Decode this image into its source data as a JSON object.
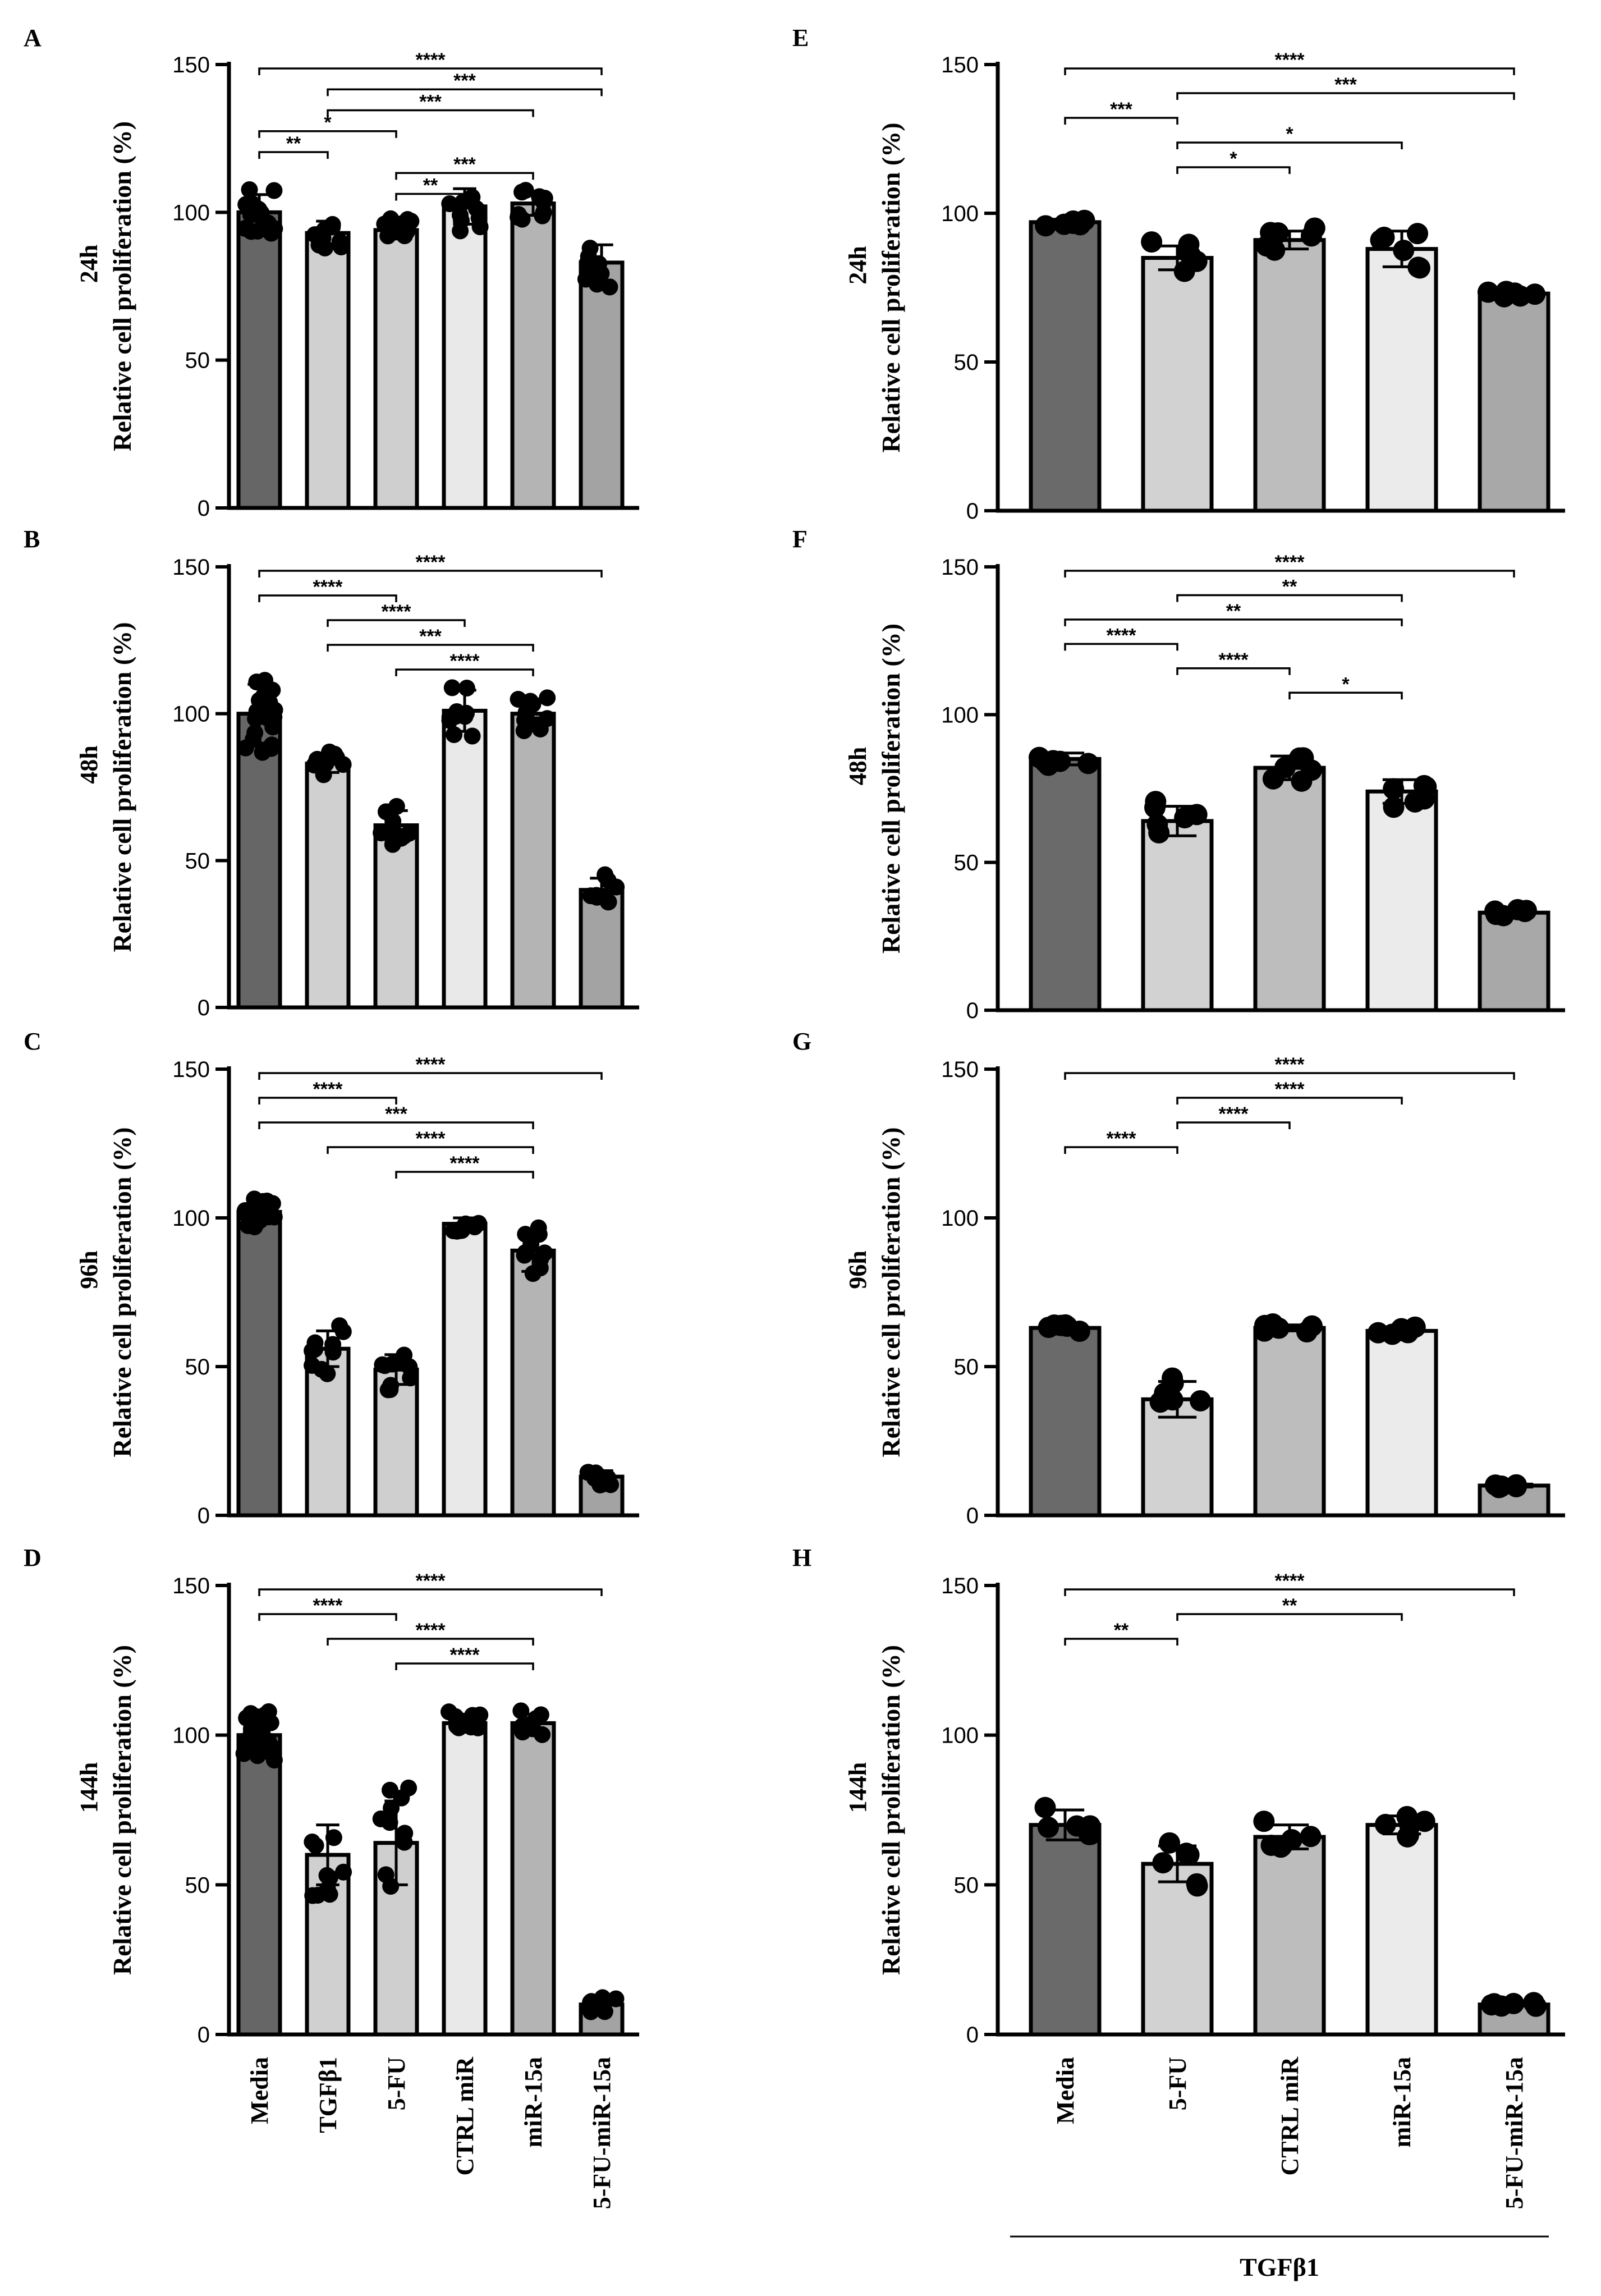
{
  "figure": {
    "y_axis_label": "Relative cell proliferation (%)",
    "group_label": "TGFβ1"
  },
  "chart_data": [
    {
      "panel": "A",
      "time": "24h",
      "type": "bar",
      "categories": [
        "Media",
        "TGFβ1",
        "5-FU",
        "CTRL miR",
        "miR-15a",
        "5-FU-miR-15a"
      ],
      "values": [
        100,
        93,
        94,
        102,
        103,
        83
      ],
      "errors": [
        6,
        4,
        3,
        6,
        4,
        6
      ],
      "ylim": [
        0,
        150
      ],
      "yticks": [
        0,
        50,
        100,
        150
      ],
      "comparisons": [
        {
          "from": 0,
          "to": 5,
          "label": "****"
        },
        {
          "from": 1,
          "to": 5,
          "label": "***"
        },
        {
          "from": 1,
          "to": 4,
          "label": "***"
        },
        {
          "from": 0,
          "to": 2,
          "label": "*"
        },
        {
          "from": 0,
          "to": 1,
          "label": "**"
        },
        {
          "from": 2,
          "to": 4,
          "label": "***"
        },
        {
          "from": 2,
          "to": 3,
          "label": "**"
        }
      ]
    },
    {
      "panel": "B",
      "time": "48h",
      "type": "bar",
      "categories": [
        "Media",
        "TGFβ1",
        "5-FU",
        "CTRL miR",
        "miR-15a",
        "5-FU-miR-15a"
      ],
      "values": [
        100,
        83,
        62,
        101,
        100,
        40
      ],
      "errors": [
        10,
        3,
        5,
        7,
        5,
        4
      ],
      "ylim": [
        0,
        150
      ],
      "yticks": [
        0,
        50,
        100,
        150
      ],
      "comparisons": [
        {
          "from": 0,
          "to": 5,
          "label": "****"
        },
        {
          "from": 0,
          "to": 2,
          "label": "****"
        },
        {
          "from": 1,
          "to": 3,
          "label": "****"
        },
        {
          "from": 1,
          "to": 4,
          "label": "***"
        },
        {
          "from": 2,
          "to": 4,
          "label": "****"
        }
      ]
    },
    {
      "panel": "C",
      "time": "96h",
      "type": "bar",
      "categories": [
        "Media",
        "TGFβ1",
        "5-FU",
        "CTRL miR",
        "miR-15a",
        "5-FU-miR-15a"
      ],
      "values": [
        102,
        56,
        49,
        98,
        89,
        13
      ],
      "errors": [
        4,
        6,
        5,
        2,
        7,
        2
      ],
      "ylim": [
        0,
        150
      ],
      "yticks": [
        0,
        50,
        100,
        150
      ],
      "comparisons": [
        {
          "from": 0,
          "to": 5,
          "label": "****"
        },
        {
          "from": 0,
          "to": 2,
          "label": "****"
        },
        {
          "from": 0,
          "to": 4,
          "label": "***"
        },
        {
          "from": 1,
          "to": 4,
          "label": "****"
        },
        {
          "from": 2,
          "to": 4,
          "label": "****"
        }
      ]
    },
    {
      "panel": "D",
      "time": "144h",
      "type": "bar",
      "categories": [
        "Media",
        "TGFβ1",
        "5-FU",
        "CTRL miR",
        "miR-15a",
        "5-FU-miR-15a"
      ],
      "values": [
        100,
        60,
        64,
        104,
        104,
        10
      ],
      "errors": [
        6,
        10,
        14,
        3,
        3,
        2
      ],
      "ylim": [
        0,
        150
      ],
      "yticks": [
        0,
        50,
        100,
        150
      ],
      "comparisons": [
        {
          "from": 0,
          "to": 5,
          "label": "****"
        },
        {
          "from": 0,
          "to": 2,
          "label": "****"
        },
        {
          "from": 1,
          "to": 4,
          "label": "****"
        },
        {
          "from": 2,
          "to": 4,
          "label": "****"
        }
      ]
    },
    {
      "panel": "E",
      "time": "24h",
      "type": "bar",
      "categories": [
        "Media",
        "5-FU",
        "CTRL miR",
        "miR-15a",
        "5-FU-miR-15a"
      ],
      "values": [
        97,
        85,
        91,
        88,
        73
      ],
      "errors": [
        1,
        4,
        3,
        6,
        1
      ],
      "ylim": [
        0,
        150
      ],
      "yticks": [
        0,
        50,
        100,
        150
      ],
      "comparisons": [
        {
          "from": 0,
          "to": 4,
          "label": "****"
        },
        {
          "from": 1,
          "to": 4,
          "label": "***"
        },
        {
          "from": 0,
          "to": 1,
          "label": "***"
        },
        {
          "from": 1,
          "to": 3,
          "label": "*"
        },
        {
          "from": 1,
          "to": 2,
          "label": "*"
        }
      ]
    },
    {
      "panel": "F",
      "time": "48h",
      "type": "bar",
      "categories": [
        "Media",
        "5-FU",
        "CTRL miR",
        "miR-15a",
        "5-FU-miR-15a"
      ],
      "values": [
        85,
        64,
        82,
        74,
        33
      ],
      "errors": [
        2,
        5,
        4,
        4,
        1
      ],
      "ylim": [
        0,
        150
      ],
      "yticks": [
        0,
        50,
        100,
        150
      ],
      "comparisons": [
        {
          "from": 0,
          "to": 4,
          "label": "****"
        },
        {
          "from": 1,
          "to": 3,
          "label": "**"
        },
        {
          "from": 0,
          "to": 3,
          "label": "**"
        },
        {
          "from": 0,
          "to": 1,
          "label": "****"
        },
        {
          "from": 1,
          "to": 2,
          "label": "****"
        },
        {
          "from": 2,
          "to": 3,
          "label": "*"
        }
      ]
    },
    {
      "panel": "G",
      "time": "96h",
      "type": "bar",
      "categories": [
        "Media",
        "5-FU",
        "CTRL miR",
        "miR-15a",
        "5-FU-miR-15a"
      ],
      "values": [
        63,
        39,
        63,
        62,
        10
      ],
      "errors": [
        1,
        6,
        1,
        1,
        0.5
      ],
      "ylim": [
        0,
        150
      ],
      "yticks": [
        0,
        50,
        100,
        150
      ],
      "comparisons": [
        {
          "from": 0,
          "to": 4,
          "label": "****"
        },
        {
          "from": 1,
          "to": 3,
          "label": "****"
        },
        {
          "from": 1,
          "to": 2,
          "label": "****"
        },
        {
          "from": 0,
          "to": 1,
          "label": "****"
        }
      ]
    },
    {
      "panel": "H",
      "time": "144h",
      "type": "bar",
      "categories": [
        "Media",
        "5-FU",
        "CTRL miR",
        "miR-15a",
        "5-FU-miR-15a"
      ],
      "values": [
        70,
        57,
        66,
        70,
        10
      ],
      "errors": [
        5,
        6,
        4,
        3,
        0.5
      ],
      "ylim": [
        0,
        150
      ],
      "yticks": [
        0,
        50,
        100,
        150
      ],
      "comparisons": [
        {
          "from": 0,
          "to": 4,
          "label": "****"
        },
        {
          "from": 1,
          "to": 3,
          "label": "**"
        },
        {
          "from": 0,
          "to": 1,
          "label": "**"
        }
      ]
    }
  ]
}
